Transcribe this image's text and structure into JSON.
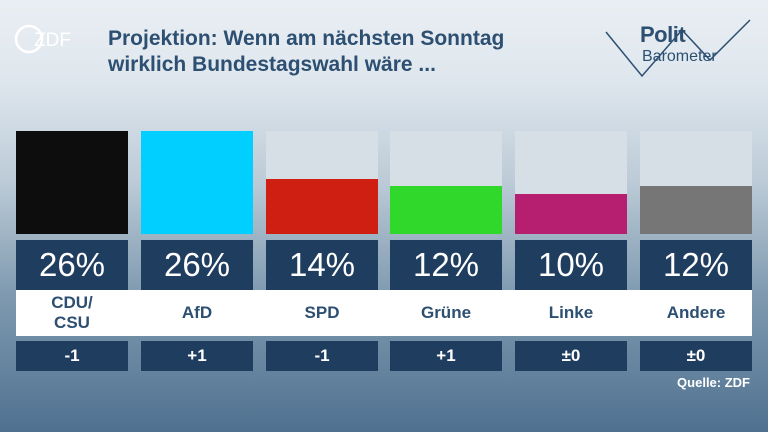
{
  "header": {
    "logo_text": "ZDF",
    "title_line1": "Projektion: Wenn am nächsten Sonntag",
    "title_line2": "wirklich Bundestagswahl wäre ...",
    "brand_line1": "Polit",
    "brand_line2": "Barometer"
  },
  "source": "Quelle: ZDF",
  "chart_data": {
    "type": "bar",
    "categories": [
      "CDU/\nCSU",
      "AfD",
      "SPD",
      "Grüne",
      "Linke",
      "Andere"
    ],
    "values": [
      26,
      26,
      14,
      12,
      10,
      12
    ],
    "value_labels": [
      "26%",
      "26%",
      "14%",
      "12%",
      "10%",
      "12%"
    ],
    "changes": [
      "-1",
      "+1",
      "-1",
      "+1",
      "±0",
      "±0"
    ],
    "colors": [
      "#0d0d0d",
      "#00cfff",
      "#cf1f12",
      "#2fd82a",
      "#b61f6f",
      "#767676"
    ],
    "ylim": [
      0,
      26
    ],
    "title": "Projektion: Wenn am nächsten Sonntag wirklich Bundestagswahl wäre ..."
  }
}
